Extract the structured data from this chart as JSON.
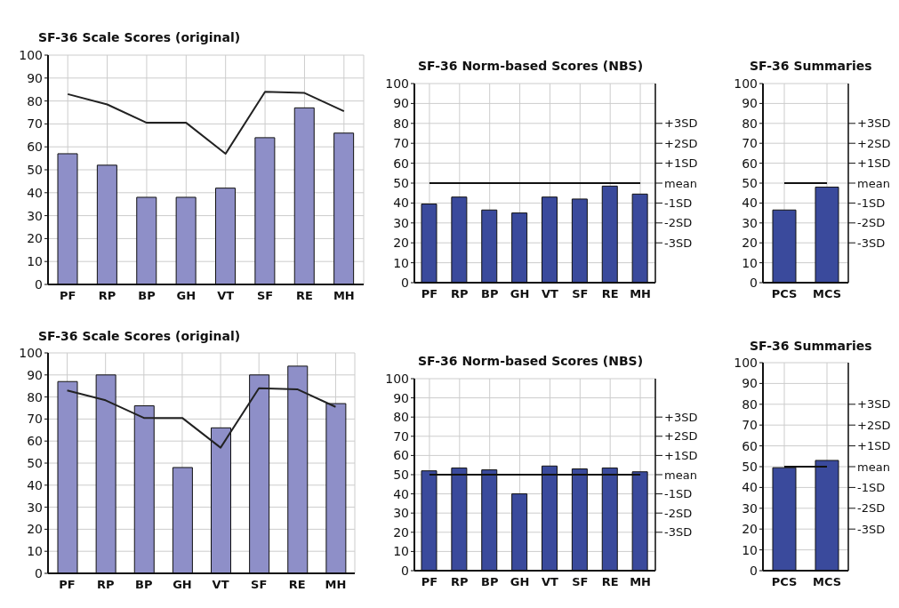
{
  "chart_data": [
    {
      "type": "bar",
      "title": "SF-36 Scale Scores (original)",
      "categories": [
        "PF",
        "RP",
        "BP",
        "GH",
        "VT",
        "SF",
        "RE",
        "MH"
      ],
      "series": [
        {
          "color": "#8e8fc8",
          "values": [
            57,
            52,
            38,
            38,
            42,
            64,
            77,
            66
          ]
        },
        {
          "type": "line",
          "color": "#222222",
          "values": [
            83,
            78.5,
            70.5,
            70.5,
            57,
            84,
            83.5,
            75.5
          ]
        }
      ],
      "ylim": [
        0,
        100
      ],
      "yticks": [
        0,
        10,
        20,
        30,
        40,
        50,
        60,
        70,
        80,
        90,
        100
      ],
      "grid": true
    },
    {
      "type": "bar",
      "title": "SF-36 Norm-based Scores (NBS)",
      "categories": [
        "PF",
        "RP",
        "BP",
        "GH",
        "VT",
        "SF",
        "RE",
        "MH"
      ],
      "series": [
        {
          "color": "#3a4a9c",
          "values": [
            39.5,
            43,
            36.5,
            35,
            43,
            42,
            48.5,
            44.5
          ]
        },
        {
          "type": "line",
          "color": "#111111",
          "values": [
            50,
            50,
            50,
            50,
            50,
            50,
            50,
            50
          ]
        }
      ],
      "ylim": [
        0,
        100
      ],
      "yticks": [
        0,
        10,
        20,
        30,
        40,
        50,
        60,
        70,
        80,
        90,
        100
      ],
      "y2lim": [
        -5,
        5
      ],
      "y2ticks": [
        {
          "value": -3,
          "label": "-3SD"
        },
        {
          "value": -2,
          "label": "-2SD"
        },
        {
          "value": -1,
          "label": "-1SD"
        },
        {
          "value": 0,
          "label": "mean"
        },
        {
          "value": 1,
          "label": "+1SD"
        },
        {
          "value": 2,
          "label": "+2SD"
        },
        {
          "value": 3,
          "label": "+3SD"
        }
      ],
      "grid": true
    },
    {
      "type": "bar",
      "title": "SF-36 Summaries",
      "categories": [
        "PCS",
        "MCS"
      ],
      "series": [
        {
          "color": "#3a4a9c",
          "values": [
            36.5,
            48
          ]
        },
        {
          "type": "line",
          "color": "#111111",
          "values": [
            50,
            50
          ]
        }
      ],
      "ylim": [
        0,
        100
      ],
      "yticks": [
        0,
        10,
        20,
        30,
        40,
        50,
        60,
        70,
        80,
        90,
        100
      ],
      "y2lim": [
        -5,
        5
      ],
      "y2ticks": [
        {
          "value": -3,
          "label": "-3SD"
        },
        {
          "value": -2,
          "label": "-2SD"
        },
        {
          "value": -1,
          "label": "-1SD"
        },
        {
          "value": 0,
          "label": "mean"
        },
        {
          "value": 1,
          "label": "+1SD"
        },
        {
          "value": 2,
          "label": "+2SD"
        },
        {
          "value": 3,
          "label": "+3SD"
        }
      ],
      "grid": true
    },
    {
      "type": "bar",
      "title": "SF-36 Scale Scores (original)",
      "categories": [
        "PF",
        "RP",
        "BP",
        "GH",
        "VT",
        "SF",
        "RE",
        "MH"
      ],
      "series": [
        {
          "color": "#8e8fc8",
          "values": [
            87,
            90,
            76,
            48,
            66,
            90,
            94,
            77
          ]
        },
        {
          "type": "line",
          "color": "#222222",
          "values": [
            83,
            78.5,
            70.5,
            70.5,
            57,
            84,
            83.5,
            75.5
          ]
        }
      ],
      "ylim": [
        0,
        100
      ],
      "yticks": [
        0,
        10,
        20,
        30,
        40,
        50,
        60,
        70,
        80,
        90,
        100
      ],
      "grid": true
    },
    {
      "type": "bar",
      "title": "SF-36 Norm-based Scores (NBS)",
      "categories": [
        "PF",
        "RP",
        "BP",
        "GH",
        "VT",
        "SF",
        "RE",
        "MH"
      ],
      "series": [
        {
          "color": "#3a4a9c",
          "values": [
            52,
            53.5,
            52.5,
            40,
            54.5,
            53,
            53.5,
            51.5
          ]
        },
        {
          "type": "line",
          "color": "#111111",
          "values": [
            50,
            50,
            50,
            50,
            50,
            50,
            50,
            50
          ]
        }
      ],
      "ylim": [
        0,
        100
      ],
      "yticks": [
        0,
        10,
        20,
        30,
        40,
        50,
        60,
        70,
        80,
        90,
        100
      ],
      "y2lim": [
        -5,
        5
      ],
      "y2ticks": [
        {
          "value": -3,
          "label": "-3SD"
        },
        {
          "value": -2,
          "label": "-2SD"
        },
        {
          "value": -1,
          "label": "-1SD"
        },
        {
          "value": 0,
          "label": "mean"
        },
        {
          "value": 1,
          "label": "+1SD"
        },
        {
          "value": 2,
          "label": "+2SD"
        },
        {
          "value": 3,
          "label": "+3SD"
        }
      ],
      "grid": true
    },
    {
      "type": "bar",
      "title": "SF-36 Summaries",
      "categories": [
        "PCS",
        "MCS"
      ],
      "series": [
        {
          "color": "#3a4a9c",
          "values": [
            49.5,
            53
          ]
        },
        {
          "type": "line",
          "color": "#111111",
          "values": [
            50,
            50
          ]
        }
      ],
      "ylim": [
        0,
        100
      ],
      "yticks": [
        0,
        10,
        20,
        30,
        40,
        50,
        60,
        70,
        80,
        90,
        100
      ],
      "y2lim": [
        -5,
        5
      ],
      "y2ticks": [
        {
          "value": -3,
          "label": "-3SD"
        },
        {
          "value": -2,
          "label": "-2SD"
        },
        {
          "value": -1,
          "label": "-1SD"
        },
        {
          "value": 0,
          "label": "mean"
        },
        {
          "value": 1,
          "label": "+1SD"
        },
        {
          "value": 2,
          "label": "+2SD"
        },
        {
          "value": 3,
          "label": "+3SD"
        }
      ],
      "grid": true
    }
  ]
}
